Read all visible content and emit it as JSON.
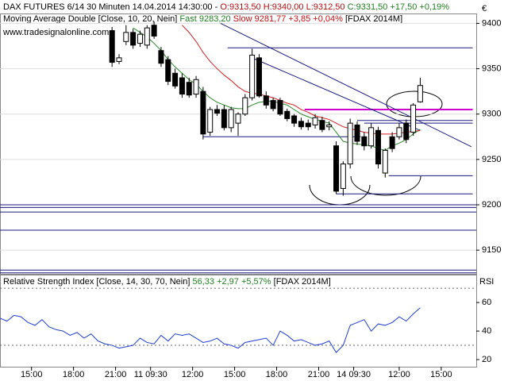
{
  "header": {
    "title_parts": [
      "DAX FUTURES 6/14 30 Minuten  14.04.2014 14:30:00 -",
      "O:9313,50 H:9340,00 L:9312,50",
      "C:9331,50 +17,50 +0,19%"
    ],
    "watermark": "www.tradesignalonline.com",
    "currency": "€"
  },
  "chart_data": [
    {
      "type": "candlestick",
      "indicator_parts": [
        "Moving Average Double [Close, 10, 20, Nein]",
        "9283,20",
        "9281,77 +3,85 +0,04%",
        "[FDAX 2014M]"
      ],
      "x": [
        16,
        17,
        18,
        19,
        20,
        21,
        22,
        23,
        24,
        25,
        26,
        27,
        28,
        29,
        30,
        31,
        32,
        33,
        34,
        35,
        36,
        37,
        38,
        39,
        40,
        41,
        42,
        43,
        44,
        45,
        46,
        47,
        48,
        49,
        50,
        51,
        52,
        53,
        54,
        55,
        56,
        57,
        58,
        59,
        60
      ],
      "open": [
        9392,
        9358,
        9380,
        9390,
        9378,
        9376,
        9398,
        9370,
        9360,
        9345,
        9340,
        9335,
        9322,
        9325,
        9280,
        9305,
        9305,
        9285,
        9290,
        9300,
        9318,
        9362,
        9320,
        9315,
        9315,
        9303,
        9298,
        9292,
        9290,
        9288,
        9293,
        9286,
        9265,
        9218,
        9245,
        9288,
        9275,
        9265,
        9282,
        9235,
        9275,
        9275,
        9290,
        9280,
        9313.5
      ],
      "high": [
        9396,
        9366,
        9398,
        9394,
        9392,
        9398,
        9402,
        9374,
        9364,
        9350,
        9345,
        9340,
        9342,
        9330,
        9308,
        9310,
        9310,
        9308,
        9302,
        9322,
        9372,
        9366,
        9325,
        9318,
        9318,
        9306,
        9300,
        9296,
        9294,
        9300,
        9297,
        9292,
        9270,
        9248,
        9295,
        9292,
        9280,
        9290,
        9286,
        9262,
        9280,
        9290,
        9294,
        9312,
        9340
      ],
      "low": [
        9352,
        9355,
        9376,
        9372,
        9374,
        9372,
        9383,
        9352,
        9332,
        9328,
        9318,
        9318,
        9318,
        9272,
        9276,
        9298,
        9282,
        9280,
        9276,
        9298,
        9315,
        9318,
        9306,
        9303,
        9298,
        9292,
        9286,
        9283,
        9282,
        9284,
        9280,
        9282,
        9212,
        9210,
        9240,
        9266,
        9260,
        9262,
        9240,
        9230,
        9258,
        9272,
        9268,
        9276,
        9312.5
      ],
      "close": [
        9357,
        9362,
        9390,
        9376,
        9388,
        9395,
        9386,
        9356,
        9336,
        9331,
        9322,
        9321,
        9338,
        9278,
        9305,
        9301,
        9285,
        9305,
        9300,
        9318,
        9365,
        9320,
        9310,
        9306,
        9300,
        9295,
        9290,
        9286,
        9286,
        9296,
        9283,
        9288,
        9215,
        9245,
        9290,
        9270,
        9265,
        9285,
        9245,
        9260,
        9262,
        9285,
        9272,
        9310,
        9331.5
      ],
      "up_color": "#ffffff",
      "down_color": "#000000",
      "series": [
        {
          "name": "Fast",
          "color": "#2a8a2a",
          "values": [
            null,
            null,
            null,
            9395,
            9390,
            9385,
            9378,
            9370,
            9360,
            9352,
            9345,
            9338,
            9333,
            9325,
            9318,
            9313,
            9310,
            9307,
            9306,
            9306,
            9310,
            9313,
            9314,
            9314,
            9312,
            9310,
            9305,
            9300,
            9297,
            9294,
            9292,
            9290,
            9280,
            9270,
            9268,
            9267,
            9266,
            9265,
            9262,
            9260,
            9265,
            9268,
            9272,
            9278,
            9283.2
          ]
        },
        {
          "name": "Slow",
          "color": "#d02020",
          "values": [
            null,
            null,
            null,
            null,
            null,
            null,
            null,
            null,
            null,
            null,
            9398,
            9390,
            9380,
            9368,
            9358,
            9350,
            9343,
            9337,
            9330,
            9325,
            9323,
            9322,
            9320,
            9318,
            9315,
            9312,
            9310,
            9305,
            9302,
            9298,
            9296,
            9294,
            9290,
            9286,
            9284,
            9282,
            9280,
            9279,
            9278,
            9278,
            9278,
            9279,
            9280,
            9281,
            9281.77
          ]
        }
      ],
      "xlim": [
        0,
        68
      ],
      "xticks": [
        {
          "value": 4.5,
          "label": "15:00"
        },
        {
          "value": 10.5,
          "label": "18:00"
        },
        {
          "value": 16.5,
          "label": "21:00"
        },
        {
          "value": 21.5,
          "label": "11 09:30"
        },
        {
          "value": 27.5,
          "label": "12:00"
        },
        {
          "value": 33.5,
          "label": "15:00"
        },
        {
          "value": 39.5,
          "label": "18:00"
        },
        {
          "value": 45.5,
          "label": "21:00"
        },
        {
          "value": 50.5,
          "label": "14 09:30"
        },
        {
          "value": 57,
          "label": "12:00"
        },
        {
          "value": 63,
          "label": "15:00"
        }
      ],
      "ylim": [
        9123,
        9410
      ],
      "yticks": [
        9150,
        9200,
        9250,
        9300,
        9350,
        9400
      ],
      "grid": true,
      "levels": [
        {
          "value": 9373,
          "from": 32.5,
          "to": 67.5,
          "color": "#1a1a80"
        },
        {
          "value": 9305,
          "from": 43.5,
          "to": 67.5,
          "color": "#d000d0"
        },
        {
          "value": 9293,
          "from": 51,
          "to": 67.5,
          "color": "#1a1a80"
        },
        {
          "value": 9290,
          "from": 52,
          "to": 67.5,
          "color": "#1a1a80"
        },
        {
          "value": 9275,
          "from": 29,
          "to": 51.5,
          "color": "#1a1a80"
        },
        {
          "value": 9232,
          "from": 55.5,
          "to": 67.5,
          "color": "#1a1a80"
        },
        {
          "value": 9212,
          "from": 48,
          "to": 67.5,
          "color": "#1a1a80"
        },
        {
          "value": 9200,
          "from": 0,
          "to": 68,
          "color": "#1a1a80"
        },
        {
          "value": 9197,
          "from": 0,
          "to": 68,
          "color": "#1a1a80"
        },
        {
          "value": 9192,
          "from": 0,
          "to": 68,
          "color": "#1a1a80"
        },
        {
          "value": 9172,
          "from": 0,
          "to": 68,
          "color": "#1a1a80"
        },
        {
          "value": 9128,
          "from": 0,
          "to": 68,
          "color": "#1a1a80"
        },
        {
          "value": 9125,
          "from": 0,
          "to": 68,
          "color": "#1a1a80"
        }
      ],
      "trendlines": [
        {
          "color": "#1a1a80",
          "points": [
            [
              31.5,
              9400
            ],
            [
              67.3,
              9264
            ]
          ]
        },
        {
          "color": "#1a1a80",
          "points": [
            [
              36,
              9362
            ],
            [
              60,
              9282
            ]
          ]
        }
      ]
    },
    {
      "type": "line",
      "title": "Relative Strength Index [Close, 14, 30, 70, Nein]",
      "value_text": "56,33 +2,97 +5,57%",
      "source": "[FDAX 2014M]",
      "axis_label": "RSI",
      "color": "#1f3fcf",
      "x": [
        0,
        1,
        2,
        3,
        4,
        5,
        6,
        7,
        8,
        9,
        10,
        11,
        12,
        13,
        14,
        15,
        16,
        17,
        18,
        19,
        20,
        21,
        22,
        23,
        24,
        25,
        26,
        27,
        28,
        29,
        30,
        31,
        32,
        33,
        34,
        35,
        36,
        37,
        38,
        39,
        40,
        41,
        42,
        43,
        44,
        45,
        46,
        47,
        48,
        49,
        50,
        51,
        52,
        53,
        54,
        55,
        56,
        57,
        58,
        59,
        60
      ],
      "values": [
        49,
        47,
        51,
        50,
        46,
        44,
        48,
        43,
        41,
        40,
        37,
        39,
        35,
        38,
        33,
        31,
        30,
        28,
        29,
        30,
        35,
        32,
        31,
        37,
        33,
        38,
        37,
        38,
        35,
        32,
        33,
        35,
        31,
        30,
        28,
        32,
        33,
        34,
        35,
        30,
        40,
        37,
        33,
        34,
        32,
        30,
        31,
        33,
        25,
        30,
        44,
        46,
        48,
        40,
        45,
        44,
        46,
        50,
        47,
        52,
        56.33
      ],
      "xlim": [
        0,
        68
      ],
      "ylim": [
        15,
        79
      ],
      "yticks": [
        20,
        40,
        60
      ],
      "levels": [
        30,
        70
      ]
    }
  ]
}
